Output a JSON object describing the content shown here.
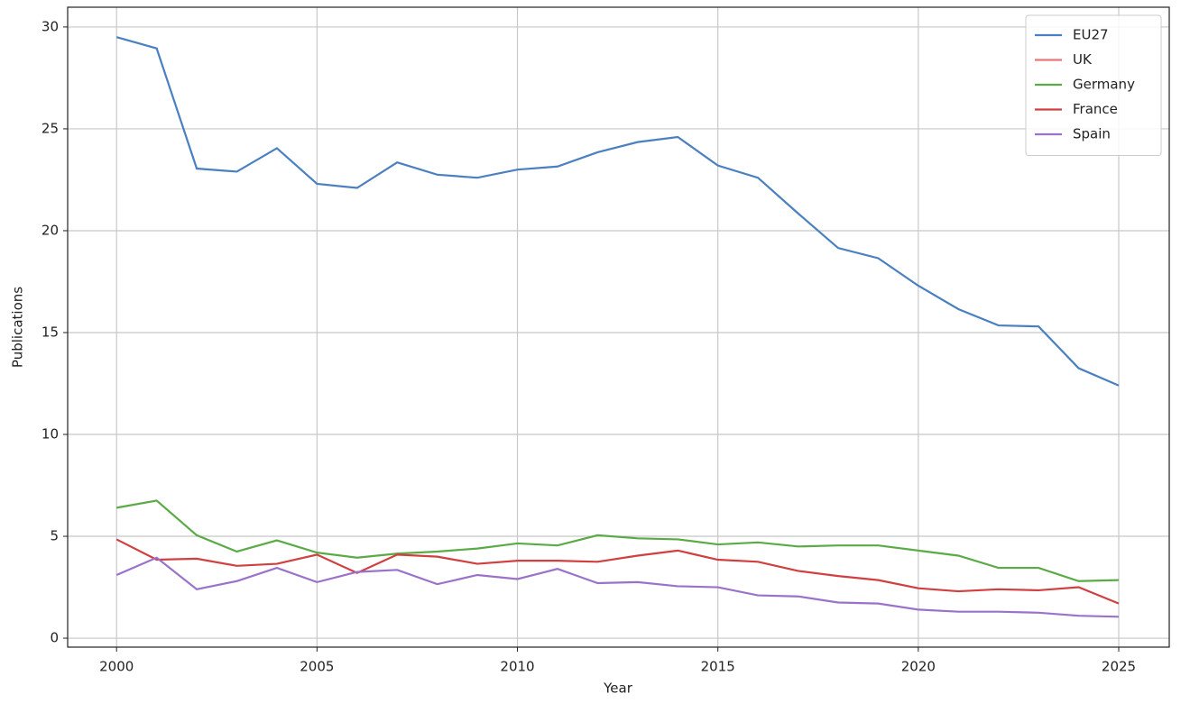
{
  "chart_data": {
    "type": "line",
    "x_label": "Year",
    "y_label": "Publications",
    "x": [
      2000,
      2001,
      2002,
      2003,
      2004,
      2005,
      2006,
      2007,
      2008,
      2009,
      2010,
      2011,
      2012,
      2013,
      2014,
      2015,
      2016,
      2017,
      2018,
      2019,
      2020,
      2021,
      2022,
      2023,
      2024,
      2025
    ],
    "xlim": [
      1998.78,
      2026.26
    ],
    "xticks": [
      2000,
      2005,
      2010,
      2015,
      2020,
      2025
    ],
    "ylim": [
      -0.44,
      30.97
    ],
    "yticks": [
      0,
      5,
      10,
      15,
      20,
      25,
      30
    ],
    "grid": true,
    "legend": "upper right",
    "series": [
      {
        "name": "EU27",
        "color": "#4a80c0",
        "values": [
          29.5,
          28.95,
          23.05,
          22.9,
          24.05,
          22.3,
          22.1,
          23.35,
          22.75,
          22.6,
          23.0,
          23.15,
          23.85,
          24.35,
          24.6,
          23.2,
          22.6,
          20.85,
          19.15,
          18.65,
          17.3,
          16.15,
          15.35,
          15.3,
          13.25,
          12.4
        ]
      },
      {
        "name": "UK",
        "color": "#e87878",
        "values": [
          null,
          null,
          null,
          null,
          null,
          null,
          null,
          null,
          null,
          null,
          null,
          null,
          null,
          null,
          null,
          null,
          null,
          null,
          null,
          null,
          null,
          null,
          null,
          null,
          null,
          null
        ]
      },
      {
        "name": "Germany",
        "color": "#5aab46",
        "values": [
          6.4,
          6.75,
          5.05,
          4.25,
          4.8,
          4.2,
          3.95,
          4.15,
          4.25,
          4.4,
          4.65,
          4.55,
          5.05,
          4.9,
          4.85,
          4.6,
          4.7,
          4.5,
          4.55,
          4.55,
          4.3,
          4.05,
          3.45,
          3.45,
          2.8,
          2.85
        ]
      },
      {
        "name": "France",
        "color": "#d04040",
        "values": [
          4.85,
          3.85,
          3.9,
          3.55,
          3.65,
          4.1,
          3.2,
          4.1,
          4.0,
          3.65,
          3.8,
          3.8,
          3.75,
          4.05,
          4.3,
          3.85,
          3.75,
          3.3,
          3.05,
          2.85,
          2.45,
          2.3,
          2.4,
          2.35,
          2.5,
          1.7
        ]
      },
      {
        "name": "Spain",
        "color": "#9b72c9",
        "values": [
          3.1,
          3.95,
          2.4,
          2.8,
          3.45,
          2.75,
          3.25,
          3.35,
          2.65,
          3.1,
          2.9,
          3.4,
          2.7,
          2.75,
          2.55,
          2.5,
          2.1,
          2.05,
          1.75,
          1.7,
          1.4,
          1.3,
          1.3,
          1.25,
          1.1,
          1.05
        ]
      }
    ]
  }
}
